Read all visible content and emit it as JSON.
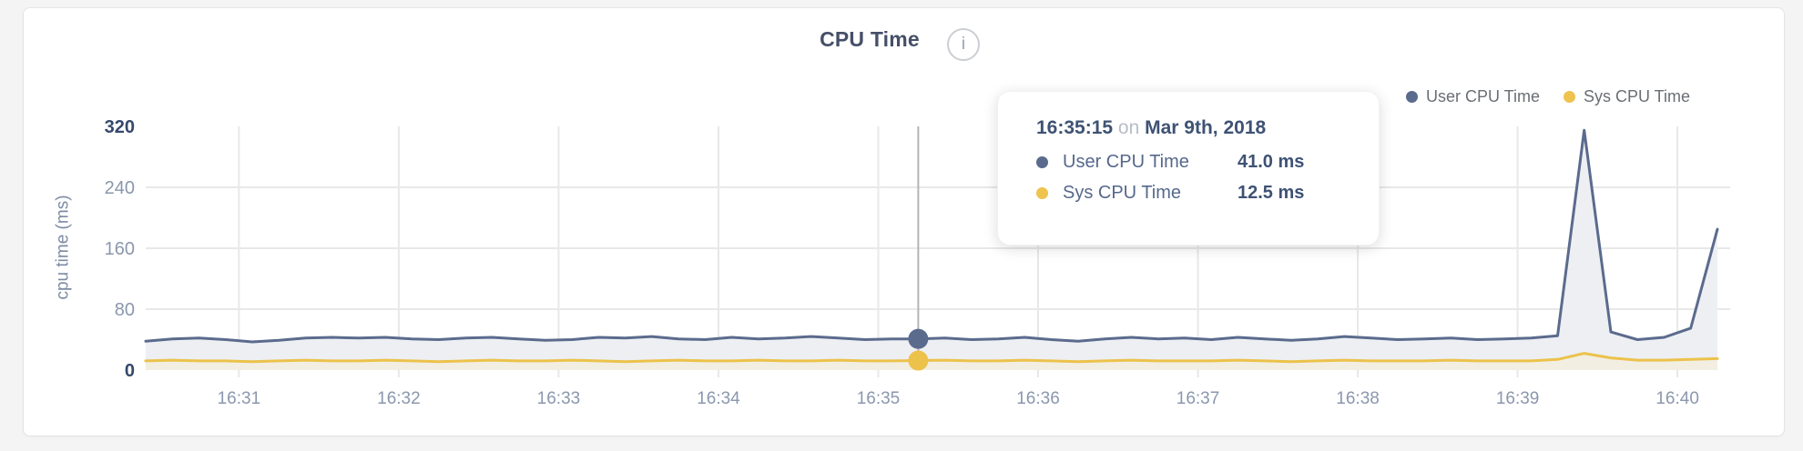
{
  "header": {
    "title": "CPU Time",
    "info_icon_glyph": "i"
  },
  "legend": {
    "items": [
      {
        "label": "User CPU Time",
        "color": "#5b6b8d"
      },
      {
        "label": "Sys CPU Time",
        "color": "#eec34e"
      }
    ]
  },
  "tooltip": {
    "time": "16:35:15",
    "connector": "on",
    "date": "Mar 9th, 2018",
    "rows": [
      {
        "label": "User CPU Time",
        "value": "41.0 ms",
        "color": "#5b6b8d"
      },
      {
        "label": "Sys CPU Time",
        "value": "12.5 ms",
        "color": "#eec34e"
      }
    ]
  },
  "chart_data": {
    "type": "area",
    "title": "CPU Time",
    "xlabel": "",
    "ylabel": "cpu time (ms)",
    "ylim": [
      0,
      320
    ],
    "y_ticks": [
      0,
      80,
      160,
      240,
      320
    ],
    "x_ticks": [
      "16:31",
      "16:32",
      "16:33",
      "16:34",
      "16:35",
      "16:36",
      "16:37",
      "16:38",
      "16:39",
      "16:40"
    ],
    "x_start": "16:30:25",
    "x_end": "16:40:15",
    "interval_s": 10,
    "grid": true,
    "legend_position": "top-right",
    "hover": {
      "index": 29,
      "time": "16:35:15",
      "user_ms": 41.0,
      "sys_ms": 12.5
    },
    "series": [
      {
        "name": "User CPU Time",
        "unit": "ms",
        "color": "#5b6b8d",
        "fill": "#edeff3",
        "values": [
          38,
          41,
          42,
          40,
          37,
          39,
          42,
          43,
          42,
          43,
          41,
          40,
          42,
          43,
          41,
          39,
          40,
          43,
          42,
          44,
          41,
          40,
          43,
          41,
          42,
          44,
          42,
          40,
          41,
          41,
          42,
          40,
          41,
          43,
          40,
          38,
          41,
          43,
          41,
          42,
          40,
          43,
          41,
          39,
          41,
          44,
          42,
          40,
          41,
          42,
          40,
          41,
          42,
          45,
          315,
          50,
          40,
          43,
          55,
          185
        ]
      },
      {
        "name": "Sys CPU Time",
        "unit": "ms",
        "color": "#ecc24b",
        "fill": "#f2eee2",
        "values": [
          12,
          13,
          12,
          12,
          11,
          12,
          13,
          12,
          12,
          13,
          12,
          11,
          12,
          13,
          12,
          12,
          13,
          12,
          11,
          12,
          13,
          12,
          12,
          13,
          12,
          12,
          13,
          12,
          12,
          12.5,
          13,
          12,
          12,
          13,
          12,
          11,
          12,
          13,
          12,
          12,
          12,
          13,
          12,
          11,
          12,
          13,
          12,
          12,
          12,
          13,
          12,
          12,
          12,
          14,
          22,
          16,
          13,
          13,
          14,
          15
        ]
      }
    ]
  },
  "colors": {
    "grid": "#e8e8e8",
    "hover_line": "#b4b4b4",
    "tick_muted": "#8b97ad",
    "tick_strong": "#36486b",
    "x_tick": "#8b97ad"
  }
}
